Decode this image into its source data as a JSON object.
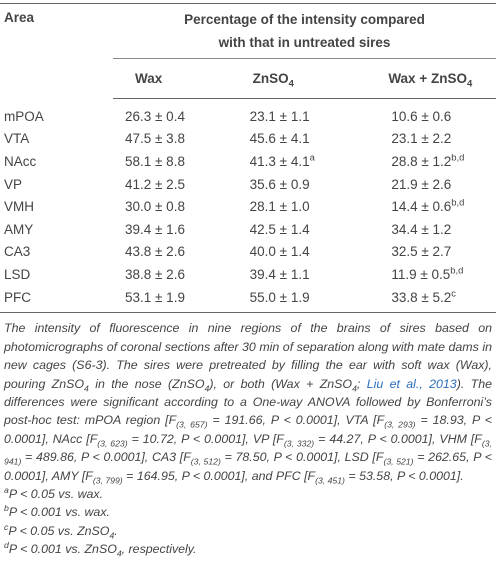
{
  "header": {
    "area": "Area",
    "span": [
      "Percentage of the intensity compared",
      "with that in untreated sires"
    ]
  },
  "columns": [
    "Wax",
    [
      {
        "text": "ZnSO"
      },
      {
        "sub": "4"
      }
    ],
    [
      {
        "text": "Wax + ZnSO"
      },
      {
        "sub": "4"
      }
    ]
  ],
  "rows": [
    [
      "mPOA",
      "26.3 ± 0.4",
      "23.1 ± 1.1",
      "10.6 ± 0.6"
    ],
    [
      "VTA",
      "47.5 ± 3.8",
      "45.6 ± 4.1",
      "23.1 ± 2.2"
    ],
    [
      "NAcc",
      "58.1 ± 8.8",
      [
        {
          "text": "41.3 ± 4.1"
        },
        {
          "sup": "a"
        }
      ],
      [
        {
          "text": "28.8 ± 1.2"
        },
        {
          "sup": "b,d"
        }
      ]
    ],
    [
      "VP",
      "41.2 ± 2.5",
      "35.6 ± 0.9",
      "21.9 ± 2.6"
    ],
    [
      "VMH",
      "30.0 ± 0.8",
      "28.1 ± 1.0",
      [
        {
          "text": "14.4 ± 0.6"
        },
        {
          "sup": "b,d"
        }
      ]
    ],
    [
      "AMY",
      "39.4 ± 1.6",
      "42.5 ± 1.4",
      "34.4 ± 1.2"
    ],
    [
      "CA3",
      "43.8 ± 2.6",
      "40.0 ± 1.4",
      "32.5 ± 2.7"
    ],
    [
      "LSD",
      "38.8 ± 2.6",
      "39.4 ± 1.1",
      [
        {
          "text": "11.9 ± 0.5"
        },
        {
          "sup": "b,d"
        }
      ]
    ],
    [
      "PFC",
      "53.1 ± 1.9",
      "55.0 ± 1.9",
      [
        {
          "text": "33.8 ± 5.2"
        },
        {
          "sup": "c"
        }
      ]
    ]
  ],
  "caption": [
    {
      "text": "The intensity of fluorescence in nine regions of the brains of sires based on photomicrographs of coronal sections after 30 min of separation along with mate dams in new cages (S6-3). The sires were pretreated by filling the ear with soft wax (Wax), pouring ZnSO"
    },
    {
      "sub": "4"
    },
    {
      "text": " in the nose (ZnSO"
    },
    {
      "sub": "4"
    },
    {
      "text": "), or both (Wax + ZnSO"
    },
    {
      "sub": "4"
    },
    {
      "text": "; "
    },
    {
      "link": "Liu et al., 2013"
    },
    {
      "text": "). The differences were significant according to a One-way ANOVA followed by Bonferroni’s post-hoc test: mPOA region [F"
    },
    {
      "sub": "(3, 657)"
    },
    {
      "text": " = 191.66, P < 0.0001], VTA [F"
    },
    {
      "sub": "(3, 293)"
    },
    {
      "text": " = 18.93, P < 0.0001], NAcc [F"
    },
    {
      "sub": "(3, 623)"
    },
    {
      "text": " = 10.72, P < 0.0001], VP [F"
    },
    {
      "sub": "(3, 332)"
    },
    {
      "text": " = 44.27, P < 0.0001], VHM [F"
    },
    {
      "sub": "(3, 941)"
    },
    {
      "text": " = 489.86, P < 0.0001], CA3 [F"
    },
    {
      "sub": "(3, 512)"
    },
    {
      "text": " = 78.50, P < 0.0001], LSD [F"
    },
    {
      "sub": "(3, 521)"
    },
    {
      "text": " = 262.65, P < 0.0001], AMY [F"
    },
    {
      "sub": "(3, 799)"
    },
    {
      "text": " = 164.95, P < 0.0001], and PFC [F"
    },
    {
      "sub": "(3, 451)"
    },
    {
      "text": " = 53.58, P < 0.0001]."
    }
  ],
  "footnotes": [
    [
      {
        "sup": "a"
      },
      {
        "text": "P < 0.05 vs. wax."
      }
    ],
    [
      {
        "sup": "b"
      },
      {
        "text": "P < 0.001 vs. wax."
      }
    ],
    [
      {
        "sup": "c"
      },
      {
        "text": "P < 0.05 vs. ZnSO"
      },
      {
        "sub": "4"
      },
      {
        "text": "."
      }
    ],
    [
      {
        "sup": "d"
      },
      {
        "text": "P < 0.001 vs. ZnSO"
      },
      {
        "sub": "4"
      },
      {
        "text": ", respectively."
      }
    ]
  ]
}
